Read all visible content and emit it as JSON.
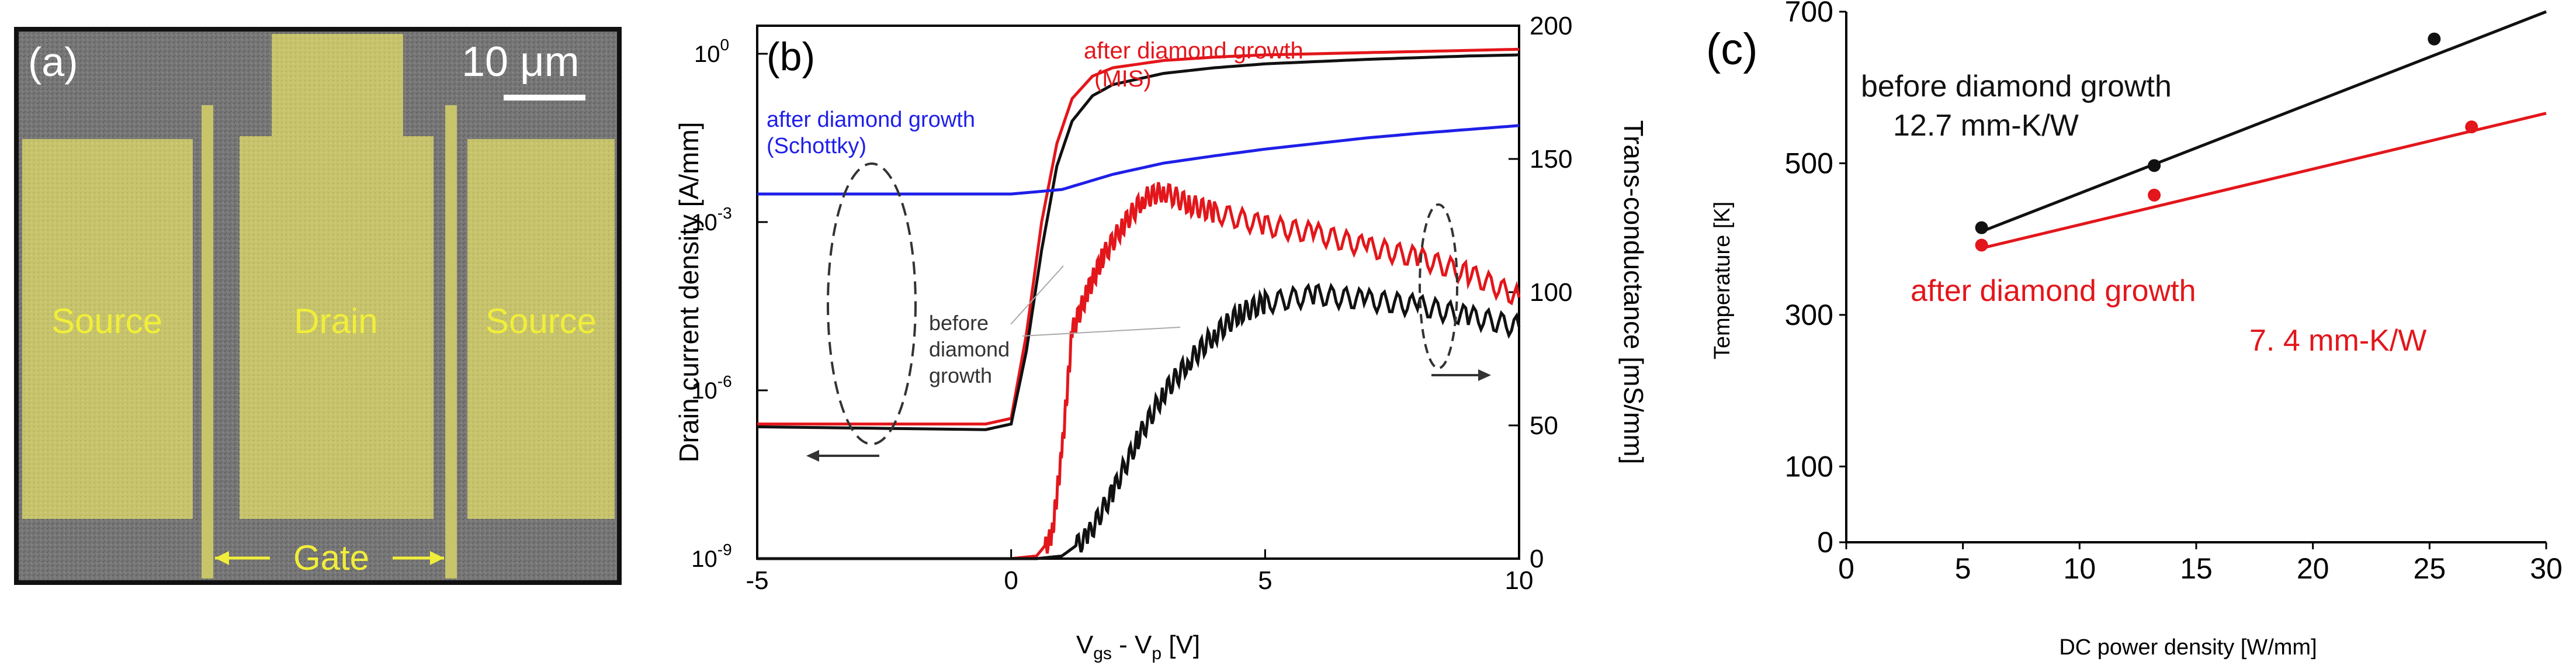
{
  "panel_a": {
    "label": "(a)",
    "scalebar": "10 μm",
    "source_left": "Source",
    "drain": "Drain",
    "source_right": "Source",
    "gate": "Gate",
    "colors": {
      "pad": "#c8c46a",
      "background": "#6f6f6f",
      "frame": "#111111"
    }
  },
  "chart_data": [
    {
      "type": "line",
      "panel_label": "(b)",
      "xlabel": "V_gs - V_p [V]",
      "xlabel_main": "V",
      "xlabel_sub1": "gs",
      "xlabel_mid": " - V",
      "xlabel_sub2": "p",
      "xlabel_tail": " [V]",
      "ylabel_left": "Drain current density [A/mm]",
      "ylabel_right": "Trans-conductance [mS/mm]",
      "xlim": [
        -5,
        10
      ],
      "ylim_left_log10": [
        -9,
        0.5
      ],
      "ylim_right": [
        0,
        200
      ],
      "x_ticks": [
        "-5",
        "0",
        "5",
        "10"
      ],
      "y_left_ticks": [
        {
          "base": "10",
          "exp": "-9",
          "value": -9
        },
        {
          "base": "10",
          "exp": "-6",
          "value": -6
        },
        {
          "base": "10",
          "exp": "-3",
          "value": -3
        },
        {
          "base": "10",
          "exp": "0",
          "value": 0
        }
      ],
      "y_right_ticks": [
        "0",
        "50",
        "100",
        "150",
        "200"
      ],
      "annotations": {
        "after_mis_1": "after diamond growth",
        "after_mis_2": "(MIS)",
        "after_schottky_1": "after diamond growth",
        "after_schottky_2": "(Schottky)",
        "before_1": "before",
        "before_2": "diamond",
        "before_3": "growth"
      },
      "series": [
        {
          "name": "after diamond growth (MIS) - drain current",
          "axis": "left",
          "color": "#e3161b",
          "x": [
            -5,
            -0.5,
            0,
            0.3,
            0.6,
            0.9,
            1.2,
            1.6,
            2,
            3,
            4,
            5,
            6,
            7,
            8,
            9,
            10
          ],
          "log10y": [
            -6.6,
            -6.6,
            -6.5,
            -5.0,
            -3.0,
            -1.6,
            -0.8,
            -0.4,
            -0.25,
            -0.12,
            -0.06,
            -0.02,
            0.0,
            0.02,
            0.04,
            0.06,
            0.08
          ]
        },
        {
          "name": "before diamond growth - drain current",
          "axis": "left",
          "color": "#111111",
          "x": [
            -5,
            -0.5,
            0,
            0.3,
            0.6,
            0.9,
            1.2,
            1.6,
            2,
            3,
            4,
            5,
            6,
            7,
            8,
            9,
            10
          ],
          "log10y": [
            -6.65,
            -6.7,
            -6.6,
            -5.3,
            -3.5,
            -2.0,
            -1.2,
            -0.75,
            -0.55,
            -0.35,
            -0.25,
            -0.18,
            -0.14,
            -0.1,
            -0.07,
            -0.04,
            -0.02
          ]
        },
        {
          "name": "after diamond growth (Schottky) - drain current",
          "axis": "left",
          "color": "#1f1fe8",
          "x": [
            -5,
            0,
            1,
            2,
            3,
            4,
            5,
            6,
            7,
            8,
            9,
            10
          ],
          "log10y": [
            -2.5,
            -2.5,
            -2.42,
            -2.15,
            -1.95,
            -1.82,
            -1.7,
            -1.6,
            -1.5,
            -1.42,
            -1.35,
            -1.28
          ]
        },
        {
          "name": "after diamond growth (MIS) - transconductance",
          "axis": "right",
          "color": "#e3161b",
          "x": [
            -5,
            0,
            0.5,
            0.8,
            1.0,
            1.2,
            1.5,
            1.8,
            2.2,
            2.6,
            3.0,
            3.5,
            4,
            5,
            6,
            7,
            8,
            9,
            10
          ],
          "y": [
            0,
            0,
            1,
            8,
            40,
            85,
            100,
            113,
            125,
            135,
            138,
            133,
            130,
            125,
            122,
            117,
            113,
            107,
            98
          ]
        },
        {
          "name": "before diamond growth - transconductance",
          "axis": "right",
          "color": "#111111",
          "x": [
            -5,
            0.5,
            1.0,
            1.5,
            2.0,
            2.5,
            3.0,
            3.5,
            4.0,
            4.5,
            5,
            6,
            7,
            8,
            9,
            10
          ],
          "y": [
            0,
            0,
            1,
            8,
            25,
            45,
            62,
            74,
            84,
            92,
            96,
            99,
            97,
            95,
            91,
            87
          ]
        }
      ]
    },
    {
      "type": "scatter",
      "panel_label": "(c)",
      "xlabel": "DC power density [W/mm]",
      "ylabel": "Temperature [K]",
      "xlim": [
        0,
        30
      ],
      "ylim": [
        0,
        700
      ],
      "x_ticks": [
        "0",
        "5",
        "10",
        "15",
        "20",
        "25",
        "30"
      ],
      "y_ticks": [
        "0",
        "100",
        "300",
        "500",
        "700"
      ],
      "annotations": {
        "before": "before diamond growth",
        "before_value": "12.7 mm-K/W",
        "after": "after diamond growth",
        "after_value": "7. 4 mm-K/W"
      },
      "series": [
        {
          "name": "before diamond growth",
          "color": "#111111",
          "points": [
            [
              5.8,
              415
            ],
            [
              13.2,
              497
            ],
            [
              25.2,
              664
            ]
          ],
          "fit": [
            [
              5.8,
              410
            ],
            [
              30,
              712
            ]
          ]
        },
        {
          "name": "after diamond growth",
          "color": "#e3161b",
          "points": [
            [
              5.8,
              392
            ],
            [
              13.2,
              458
            ],
            [
              26.8,
              548
            ]
          ],
          "fit": [
            [
              5.8,
              388
            ],
            [
              30,
              566
            ]
          ]
        }
      ]
    }
  ]
}
